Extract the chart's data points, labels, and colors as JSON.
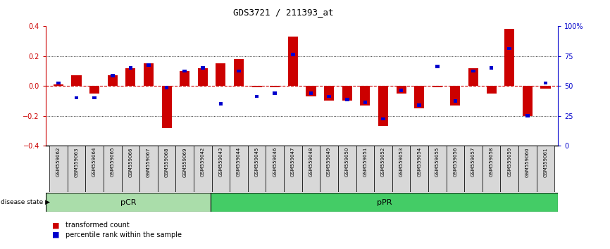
{
  "title": "GDS3721 / 211393_at",
  "samples": [
    "GSM559062",
    "GSM559063",
    "GSM559064",
    "GSM559065",
    "GSM559066",
    "GSM559067",
    "GSM559068",
    "GSM559069",
    "GSM559042",
    "GSM559043",
    "GSM559044",
    "GSM559045",
    "GSM559046",
    "GSM559047",
    "GSM559048",
    "GSM559049",
    "GSM559050",
    "GSM559051",
    "GSM559052",
    "GSM559053",
    "GSM559054",
    "GSM559055",
    "GSM559056",
    "GSM559057",
    "GSM559058",
    "GSM559059",
    "GSM559060",
    "GSM559061"
  ],
  "red_bars": [
    0.01,
    0.07,
    -0.05,
    0.07,
    0.12,
    0.15,
    -0.28,
    0.1,
    0.12,
    0.15,
    0.18,
    -0.01,
    -0.01,
    0.33,
    -0.07,
    -0.1,
    -0.1,
    -0.13,
    -0.27,
    -0.05,
    -0.15,
    -0.01,
    -0.13,
    0.12,
    -0.05,
    0.38,
    -0.2,
    -0.02
  ],
  "blue_vals": [
    0.02,
    -0.08,
    -0.08,
    0.07,
    0.12,
    0.14,
    -0.01,
    0.1,
    0.12,
    -0.12,
    0.1,
    -0.07,
    -0.05,
    0.21,
    -0.05,
    -0.07,
    -0.09,
    -0.11,
    -0.22,
    -0.03,
    -0.13,
    0.13,
    -0.1,
    0.1,
    0.12,
    0.25,
    -0.2,
    0.02
  ],
  "pCR_count": 9,
  "pPR_count": 19,
  "ylim": [
    -0.4,
    0.4
  ],
  "yticks_red": [
    -0.4,
    -0.2,
    0.0,
    0.2,
    0.4
  ],
  "yticks_blue": [
    0,
    25,
    50,
    75,
    100
  ],
  "red_color": "#CC0000",
  "blue_color": "#0000CC",
  "pCR_color": "#aaddaa",
  "pPR_color": "#44cc66",
  "bar_width": 0.55,
  "blue_bar_width": 0.22,
  "blue_bar_height": 0.022,
  "fig_width": 8.66,
  "fig_height": 3.54
}
